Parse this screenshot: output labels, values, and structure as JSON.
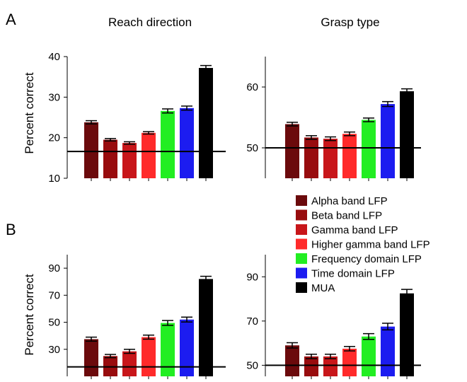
{
  "panel_labels": [
    "A",
    "B"
  ],
  "column_titles": [
    "Reach direction",
    "Grasp type"
  ],
  "legend": [
    {
      "label": "Alpha band LFP",
      "color": "#6b0a0c"
    },
    {
      "label": "Beta band LFP",
      "color": "#980c0e"
    },
    {
      "label": "Gamma band LFP",
      "color": "#c8161a"
    },
    {
      "label": "Higher gamma band LFP",
      "color": "#ff2a2a"
    },
    {
      "label": "Frequency domain LFP",
      "color": "#22ee22"
    },
    {
      "label": "Time domain LFP",
      "color": "#1c1cf0"
    },
    {
      "label": "MUA",
      "color": "#000000"
    }
  ],
  "chart_data": [
    {
      "type": "bar",
      "panel": "A",
      "title": "Reach direction",
      "ylabel": "Percent correct",
      "ylim": [
        10,
        40
      ],
      "yticks": [
        10,
        20,
        30,
        40
      ],
      "values": [
        23.8,
        19.5,
        18.7,
        21.2,
        26.6,
        27.3,
        37.2
      ],
      "errors": [
        0.4,
        0.3,
        0.3,
        0.3,
        0.5,
        0.5,
        0.6
      ],
      "chance": 16.6
    },
    {
      "type": "bar",
      "panel": "A",
      "title": "Grasp type",
      "ylabel": "",
      "ylim": [
        45,
        65
      ],
      "yticks": [
        50,
        60
      ],
      "values": [
        53.9,
        51.7,
        51.5,
        52.3,
        54.6,
        57.2,
        59.3
      ],
      "errors": [
        0.3,
        0.3,
        0.3,
        0.3,
        0.3,
        0.4,
        0.4
      ],
      "chance": 50
    },
    {
      "type": "bar",
      "panel": "B",
      "title": "",
      "ylabel": "Percent correct",
      "ylim": [
        10,
        100
      ],
      "yticks": [
        30,
        50,
        70,
        90
      ],
      "values": [
        37.5,
        25,
        28.5,
        39,
        49.5,
        52,
        82
      ],
      "errors": [
        1.5,
        1.2,
        1.5,
        1.5,
        1.8,
        1.8,
        2
      ],
      "chance": 17
    },
    {
      "type": "bar",
      "panel": "B",
      "title": "",
      "ylabel": "",
      "ylim": [
        45,
        100
      ],
      "yticks": [
        50,
        70,
        90
      ],
      "values": [
        59,
        54,
        54,
        57.5,
        63,
        67.5,
        82.5
      ],
      "errors": [
        1.2,
        1,
        1,
        1,
        1.3,
        1.5,
        1.8
      ],
      "chance": 50
    }
  ]
}
